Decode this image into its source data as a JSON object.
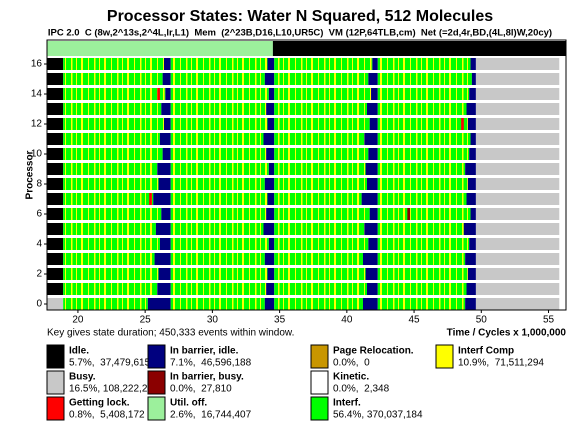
{
  "chart_data": {
    "type": "state-timeline",
    "title": "Processor States: Water N Squared, 512 Molecules",
    "subtitle": "IPC 2.0  C (8w,2^13s,2^4L,lr,L1)  Mem  (2^23B,D16,L10,UR5C)  VM (12P,64TLB,cm)  Net (=2d,4r,BD,(4L,8l)W,20cy)",
    "ylabel": "Processor",
    "xlabel": "Time / Cycles x 1,000,000",
    "note": "Key gives state duration; 450,333 events within window.",
    "xlim": [
      17.7,
      56.3
    ],
    "xticks": [
      20,
      25,
      30,
      35,
      40,
      45,
      50,
      55
    ],
    "ylim": [
      -0.8,
      17.2
    ],
    "yticks": [
      0,
      2,
      4,
      6,
      8,
      10,
      12,
      14,
      16
    ],
    "states": [
      {
        "name": "Idle.",
        "stats": "5.7%,  37,479,615",
        "color": "#000000"
      },
      {
        "name": "Busy.",
        "stats": "16.5%, 108,222,285",
        "color": "#c8c8c8"
      },
      {
        "name": "Getting lock.",
        "stats": "0.8%,  5,408,172",
        "color": "#ff0000"
      },
      {
        "name": "In barrier, idle.",
        "stats": "7.1%,  46,596,188",
        "color": "#00007f"
      },
      {
        "name": "In barrier, busy.",
        "stats": "0.0%,  27,810",
        "color": "#8b0000"
      },
      {
        "name": "Util. off.",
        "stats": "2.6%,  16,744,407",
        "color": "#9cf09c"
      },
      {
        "name": "Page Relocation.",
        "stats": "0.0%,  0",
        "color": "#c89600"
      },
      {
        "name": "Kinetic.",
        "stats": "0.0%,  2,348",
        "color": "#ffffff"
      },
      {
        "name": "Interf.",
        "stats": "56.4%, 370,037,184",
        "color": "#00ff00"
      },
      {
        "name": "Interf Comp",
        "stats": "10.9%,  71,511,294",
        "color": "#ffff00"
      }
    ],
    "util_strip": [
      [
        17.7,
        34.5,
        5
      ],
      [
        34.5,
        56.3,
        0
      ]
    ],
    "rows": [
      [
        [
          17.7,
          18.9,
          1
        ],
        [
          18.9,
          25.2,
          8
        ],
        [
          25.2,
          26.9,
          3
        ],
        [
          26.9,
          33.9,
          8
        ],
        [
          33.9,
          34.6,
          3
        ],
        [
          34.6,
          41.2,
          8
        ],
        [
          41.2,
          42.3,
          3
        ],
        [
          42.3,
          48.8,
          8
        ],
        [
          48.8,
          49.6,
          3
        ],
        [
          49.6,
          55.8,
          1
        ]
      ],
      [
        [
          17.7,
          18.9,
          0
        ],
        [
          18.9,
          25.9,
          8
        ],
        [
          25.9,
          26.9,
          3
        ],
        [
          26.9,
          34.0,
          8
        ],
        [
          34.0,
          34.6,
          3
        ],
        [
          34.6,
          41.5,
          8
        ],
        [
          41.5,
          42.3,
          3
        ],
        [
          42.3,
          48.9,
          8
        ],
        [
          48.9,
          49.6,
          3
        ],
        [
          49.6,
          55.8,
          1
        ]
      ],
      [
        [
          17.7,
          18.9,
          0
        ],
        [
          18.9,
          26.0,
          8
        ],
        [
          26.0,
          26.9,
          3
        ],
        [
          26.9,
          34.1,
          8
        ],
        [
          34.1,
          34.6,
          3
        ],
        [
          34.6,
          41.4,
          8
        ],
        [
          41.4,
          42.3,
          3
        ],
        [
          42.3,
          49.0,
          8
        ],
        [
          49.0,
          49.6,
          3
        ],
        [
          49.6,
          55.8,
          1
        ]
      ],
      [
        [
          17.7,
          18.9,
          0
        ],
        [
          18.9,
          25.7,
          8
        ],
        [
          25.7,
          26.9,
          3
        ],
        [
          26.9,
          33.9,
          8
        ],
        [
          33.9,
          34.6,
          3
        ],
        [
          34.6,
          41.2,
          8
        ],
        [
          41.2,
          42.3,
          3
        ],
        [
          42.3,
          48.8,
          8
        ],
        [
          48.8,
          49.6,
          3
        ],
        [
          49.6,
          55.8,
          1
        ]
      ],
      [
        [
          17.7,
          18.9,
          0
        ],
        [
          18.9,
          26.1,
          8
        ],
        [
          26.1,
          26.9,
          3
        ],
        [
          26.9,
          34.2,
          8
        ],
        [
          34.2,
          34.6,
          3
        ],
        [
          34.6,
          41.6,
          8
        ],
        [
          41.6,
          42.3,
          3
        ],
        [
          42.3,
          49.1,
          8
        ],
        [
          49.1,
          49.6,
          3
        ],
        [
          49.6,
          55.8,
          1
        ]
      ],
      [
        [
          17.7,
          18.9,
          0
        ],
        [
          18.9,
          25.8,
          8
        ],
        [
          25.8,
          26.9,
          3
        ],
        [
          26.9,
          33.8,
          8
        ],
        [
          33.8,
          34.6,
          3
        ],
        [
          34.6,
          41.3,
          8
        ],
        [
          41.3,
          42.3,
          3
        ],
        [
          42.3,
          48.7,
          8
        ],
        [
          48.7,
          49.6,
          3
        ],
        [
          49.6,
          55.8,
          1
        ]
      ],
      [
        [
          17.7,
          18.9,
          0
        ],
        [
          18.9,
          26.2,
          8
        ],
        [
          26.2,
          26.9,
          3
        ],
        [
          26.9,
          34.0,
          8
        ],
        [
          34.0,
          34.6,
          3
        ],
        [
          34.6,
          41.7,
          8
        ],
        [
          41.7,
          42.3,
          3
        ],
        [
          42.3,
          49.2,
          8
        ],
        [
          49.2,
          49.6,
          3
        ],
        [
          49.6,
          55.8,
          1
        ],
        [
          44.5,
          44.7,
          4
        ]
      ],
      [
        [
          17.7,
          18.9,
          0
        ],
        [
          18.9,
          25.6,
          8
        ],
        [
          25.6,
          26.9,
          3
        ],
        [
          26.9,
          34.1,
          8
        ],
        [
          34.1,
          34.6,
          3
        ],
        [
          34.6,
          41.1,
          8
        ],
        [
          41.1,
          42.3,
          3
        ],
        [
          42.3,
          48.9,
          8
        ],
        [
          48.9,
          49.6,
          3
        ],
        [
          49.6,
          55.8,
          1
        ],
        [
          25.3,
          25.5,
          2
        ]
      ],
      [
        [
          17.7,
          18.9,
          0
        ],
        [
          18.9,
          26.0,
          8
        ],
        [
          26.0,
          26.9,
          3
        ],
        [
          26.9,
          33.9,
          8
        ],
        [
          33.9,
          34.6,
          3
        ],
        [
          34.6,
          41.5,
          8
        ],
        [
          41.5,
          42.3,
          3
        ],
        [
          42.3,
          49.0,
          8
        ],
        [
          49.0,
          49.6,
          3
        ],
        [
          49.6,
          55.8,
          1
        ]
      ],
      [
        [
          17.7,
          18.9,
          0
        ],
        [
          18.9,
          25.9,
          8
        ],
        [
          25.9,
          26.9,
          3
        ],
        [
          26.9,
          34.2,
          8
        ],
        [
          34.2,
          34.6,
          3
        ],
        [
          34.6,
          41.4,
          8
        ],
        [
          41.4,
          42.3,
          3
        ],
        [
          42.3,
          48.8,
          8
        ],
        [
          48.8,
          49.6,
          3
        ],
        [
          49.6,
          55.8,
          1
        ]
      ],
      [
        [
          17.7,
          18.9,
          0
        ],
        [
          18.9,
          26.3,
          8
        ],
        [
          26.3,
          26.9,
          3
        ],
        [
          26.9,
          34.0,
          8
        ],
        [
          34.0,
          34.6,
          3
        ],
        [
          34.6,
          41.6,
          8
        ],
        [
          41.6,
          42.3,
          3
        ],
        [
          42.3,
          49.1,
          8
        ],
        [
          49.1,
          49.6,
          3
        ],
        [
          49.6,
          55.8,
          1
        ]
      ],
      [
        [
          17.7,
          18.9,
          0
        ],
        [
          18.9,
          26.1,
          8
        ],
        [
          26.1,
          26.9,
          3
        ],
        [
          26.9,
          33.8,
          8
        ],
        [
          33.8,
          34.6,
          3
        ],
        [
          34.6,
          41.3,
          8
        ],
        [
          41.3,
          42.3,
          3
        ],
        [
          42.3,
          49.2,
          8
        ],
        [
          49.2,
          49.6,
          3
        ],
        [
          49.6,
          55.8,
          1
        ]
      ],
      [
        [
          17.7,
          18.9,
          0
        ],
        [
          18.9,
          26.4,
          8
        ],
        [
          26.4,
          26.9,
          3
        ],
        [
          26.9,
          34.1,
          8
        ],
        [
          34.1,
          34.6,
          3
        ],
        [
          34.6,
          41.7,
          8
        ],
        [
          41.7,
          42.3,
          3
        ],
        [
          42.3,
          49.0,
          8
        ],
        [
          49.0,
          49.6,
          3
        ],
        [
          49.6,
          55.8,
          1
        ],
        [
          48.5,
          48.7,
          2
        ]
      ],
      [
        [
          17.7,
          18.9,
          0
        ],
        [
          18.9,
          26.2,
          8
        ],
        [
          26.2,
          26.9,
          3
        ],
        [
          26.9,
          34.0,
          8
        ],
        [
          34.0,
          34.6,
          3
        ],
        [
          34.6,
          41.5,
          8
        ],
        [
          41.5,
          42.3,
          3
        ],
        [
          42.3,
          48.9,
          8
        ],
        [
          48.9,
          49.6,
          3
        ],
        [
          49.6,
          55.8,
          1
        ]
      ],
      [
        [
          17.7,
          18.9,
          0
        ],
        [
          18.9,
          26.5,
          8
        ],
        [
          26.5,
          26.9,
          3
        ],
        [
          26.9,
          34.2,
          8
        ],
        [
          34.2,
          34.6,
          3
        ],
        [
          34.6,
          41.8,
          8
        ],
        [
          41.8,
          42.3,
          3
        ],
        [
          42.3,
          49.1,
          8
        ],
        [
          49.1,
          49.6,
          3
        ],
        [
          49.6,
          55.8,
          1
        ],
        [
          25.9,
          26.1,
          2
        ]
      ],
      [
        [
          17.7,
          18.9,
          0
        ],
        [
          18.9,
          26.3,
          8
        ],
        [
          26.3,
          26.9,
          3
        ],
        [
          26.9,
          33.9,
          8
        ],
        [
          33.9,
          34.6,
          3
        ],
        [
          34.6,
          41.6,
          8
        ],
        [
          41.6,
          42.3,
          3
        ],
        [
          42.3,
          49.3,
          8
        ],
        [
          49.3,
          49.6,
          3
        ],
        [
          49.6,
          55.8,
          1
        ]
      ],
      [
        [
          17.7,
          18.9,
          0
        ],
        [
          18.9,
          26.4,
          8
        ],
        [
          26.4,
          26.9,
          3
        ],
        [
          26.9,
          34.1,
          8
        ],
        [
          34.1,
          34.6,
          3
        ],
        [
          34.6,
          41.9,
          8
        ],
        [
          41.9,
          42.3,
          3
        ],
        [
          42.3,
          49.2,
          8
        ],
        [
          49.2,
          49.6,
          3
        ],
        [
          49.6,
          55.8,
          1
        ]
      ]
    ]
  }
}
